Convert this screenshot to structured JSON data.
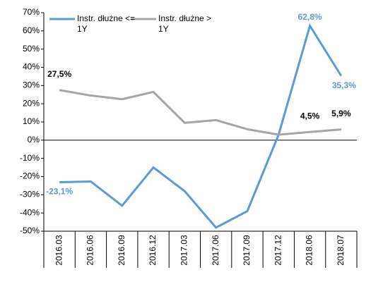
{
  "chart_data": {
    "type": "line",
    "categories": [
      "2016.03",
      "2016.06",
      "2016.09",
      "2016.12",
      "2017.03",
      "2017.06",
      "2017.09",
      "2017.12",
      "2018.06",
      "2018.07"
    ],
    "series": [
      {
        "name": "Instr. dłużne <= 1Y",
        "color": "#5b9bd5",
        "values": [
          -23.1,
          -22.7,
          -36,
          -15,
          -28,
          -48,
          -39,
          3,
          62.8,
          35.3
        ],
        "value_labels": [
          "-23,1%",
          null,
          null,
          null,
          null,
          null,
          null,
          null,
          "62,8%",
          "35,3%"
        ]
      },
      {
        "name": "Instr. dłużne > 1Y",
        "color": "#a5a5a5",
        "values": [
          27.5,
          24.5,
          22.5,
          26.5,
          9.5,
          11,
          6,
          3,
          4.5,
          5.9
        ],
        "value_labels": [
          "27,5%",
          null,
          null,
          null,
          null,
          null,
          null,
          null,
          "4,5%",
          "5,9%"
        ]
      }
    ],
    "ylim": [
      -50,
      70
    ],
    "yticks": [
      {
        "value": -50,
        "label": "-50%"
      },
      {
        "value": -40,
        "label": "-40%"
      },
      {
        "value": -30,
        "label": "-30%"
      },
      {
        "value": -20,
        "label": "-20%"
      },
      {
        "value": -10,
        "label": "-10%"
      },
      {
        "value": 0,
        "label": "0%"
      },
      {
        "value": 10,
        "label": "10%"
      },
      {
        "value": 20,
        "label": "20%"
      },
      {
        "value": 30,
        "label": "30%"
      },
      {
        "value": 40,
        "label": "40%"
      },
      {
        "value": 50,
        "label": "50%"
      },
      {
        "value": 60,
        "label": "60%"
      },
      {
        "value": 70,
        "label": "70%"
      }
    ],
    "grid": false,
    "legend": "top-left"
  }
}
